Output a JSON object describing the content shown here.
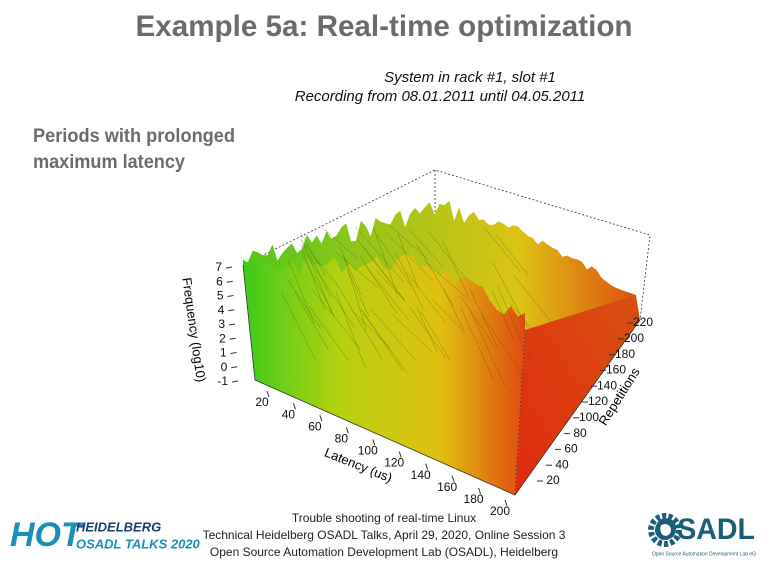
{
  "header": {
    "title": "Example 5a: Real-time optimization"
  },
  "subtitle": {
    "lines": [
      "Periods with prolonged",
      "maximum latency"
    ]
  },
  "figure": {
    "title_lines": [
      "System in rack #1, slot #1",
      "Recording from 08.01.2011 until 04.05.2011"
    ],
    "z_label": "Frequency (log10)",
    "z_ticks": [
      -1,
      0,
      1,
      2,
      3,
      4,
      5,
      6,
      7
    ],
    "x_label": "Latency (us)",
    "x_ticks": [
      20,
      40,
      60,
      80,
      100,
      120,
      140,
      160,
      180,
      200
    ],
    "y_label": "Repetitions",
    "y_ticks": [
      20,
      40,
      60,
      80,
      100,
      120,
      140,
      160,
      180,
      200,
      220
    ]
  },
  "footer": {
    "lines": [
      "Trouble shooting of real-time Linux",
      "Technical Heidelberg OSADL Talks, April 29, 2020, Online Session 3",
      "Open Source Automation Development Lab (OSADL), Heidelberg"
    ]
  },
  "logo_left": {
    "mark": "HOT",
    "line1": "HEIDELBERG",
    "line2": "OSADL TALKS 2020"
  },
  "logo_right": {
    "name": "OSADL",
    "tagline": "Open Source Automation Development Lab eG"
  }
}
